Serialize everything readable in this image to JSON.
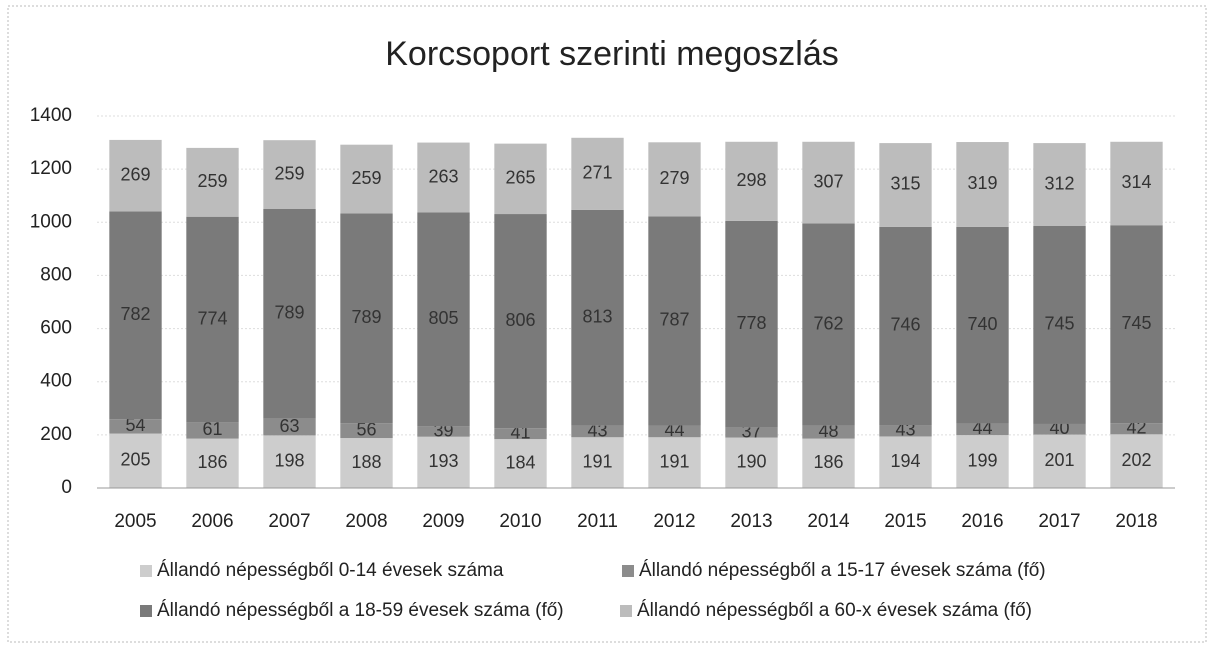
{
  "chart_data": {
    "type": "stacked_bar",
    "title": "Korcsoport szerinti megoszlás",
    "categories": [
      "2005",
      "2006",
      "2007",
      "2008",
      "2009",
      "2010",
      "2011",
      "2012",
      "2013",
      "2014",
      "2015",
      "2016",
      "2017",
      "2018"
    ],
    "series": [
      {
        "name": "Állandó népességből 0-14 évesek száma",
        "color": "#cdcdcd",
        "values": [
          205,
          186,
          198,
          188,
          193,
          184,
          191,
          191,
          190,
          186,
          194,
          199,
          201,
          202
        ]
      },
      {
        "name": "Állandó népességből a 15-17 évesek száma (fő)",
        "color": "#8c8c8c",
        "values": [
          54,
          61,
          63,
          56,
          39,
          41,
          43,
          44,
          37,
          48,
          43,
          44,
          40,
          42
        ]
      },
      {
        "name": "Állandó népességből a 18-59 évesek száma (fő)",
        "color": "#7a7a7a",
        "values": [
          782,
          774,
          789,
          789,
          805,
          806,
          813,
          787,
          778,
          762,
          746,
          740,
          745,
          745
        ]
      },
      {
        "name": "Állandó népességből a 60-x évesek száma (fő)",
        "color": "#bcbcbc",
        "values": [
          269,
          259,
          259,
          259,
          263,
          265,
          271,
          279,
          298,
          307,
          315,
          319,
          312,
          314
        ]
      }
    ],
    "ylim": [
      0,
      1400
    ],
    "yticks": [
      0,
      200,
      400,
      600,
      800,
      1000,
      1200,
      1400
    ],
    "grid": true
  }
}
